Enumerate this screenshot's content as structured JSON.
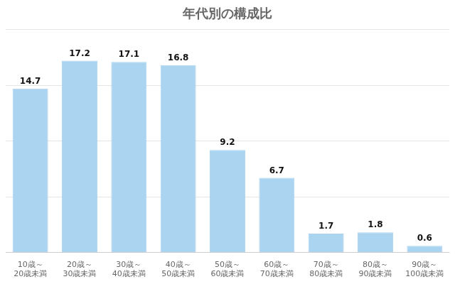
{
  "chart_data": {
    "type": "bar",
    "title": "年代別の構成比",
    "categories": [
      "10歳～\n20歳未満",
      "20歳～\n30歳未満",
      "30歳～\n40歳未満",
      "40歳～\n50歳未満",
      "50歳～\n60歳未満",
      "60歳～\n70歳未満",
      "70歳～\n80歳未満",
      "80歳～\n90歳未満",
      "90歳～\n100歳未満"
    ],
    "values": [
      14.7,
      17.2,
      17.1,
      16.8,
      9.2,
      6.7,
      1.7,
      1.8,
      0.6
    ],
    "color": "#aad4f0",
    "ylim": [
      0,
      20
    ],
    "yticks": [
      0,
      5,
      10,
      15,
      20
    ],
    "grid": true,
    "data_labels": true,
    "tick_labels": "x"
  }
}
